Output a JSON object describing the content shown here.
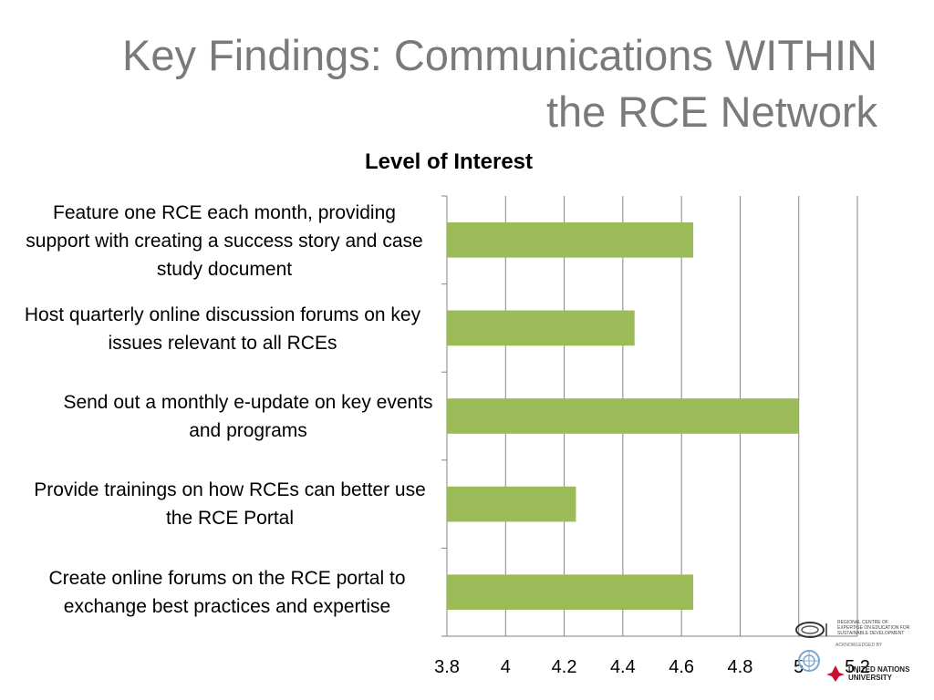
{
  "slide": {
    "title_line1": "Key Findings: Communications WITHIN",
    "title_line2": "the RCE Network"
  },
  "chart_data": {
    "type": "bar",
    "orientation": "horizontal",
    "title": "Level of Interest",
    "categories": [
      "Feature one RCE each month, providing support with creating a success story and case study document",
      "Host quarterly online discussion forums on key issues relevant to all RCEs",
      "Send out a monthly e-update on key events and programs",
      "Provide trainings on how RCEs can better use the RCE Portal",
      "Create online forums on the RCE portal to exchange best practices and expertise"
    ],
    "values": [
      4.64,
      4.44,
      5.0,
      4.24,
      4.64
    ],
    "xlim": [
      3.8,
      5.2
    ],
    "xticks": [
      "3.8",
      "4",
      "4.2",
      "4.4",
      "4.6",
      "4.8",
      "5",
      "5.2"
    ],
    "grid": true,
    "bar_color": "#9bbb59",
    "grid_color": "#868686"
  },
  "logos": {
    "rce_text": "REGIONAL CENTRE OF EXPERTISE ON EDUCATION FOR SUSTAINABLE DEVELOPMENT",
    "acknowledged": "ACKNOWLEDGED BY",
    "unu_text_line1": "UNITED NATIONS",
    "unu_text_line2": "UNIVERSITY"
  }
}
